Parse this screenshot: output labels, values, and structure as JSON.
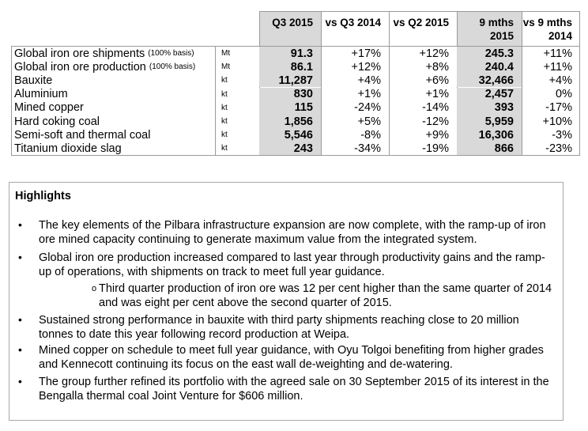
{
  "table": {
    "headers": {
      "q3_2015": "Q3 2015",
      "vs_q3_2014": "vs Q3 2014",
      "vs_q2_2015": "vs Q2 2015",
      "nine_mths_line1": "9 mths",
      "nine_mths_line2": "2015",
      "vs_nine_line1": "vs 9 mths",
      "vs_nine_line2": "2014"
    },
    "rows": [
      {
        "label": "Global iron ore shipments",
        "basis": "(100% basis)",
        "unit": "Mt",
        "q3": "91.3",
        "vs_q3": "+17%",
        "vs_q2": "+12%",
        "nine": "245.3",
        "vs_nine": "+11%"
      },
      {
        "label": "Global iron ore production",
        "basis": "(100% basis)",
        "unit": "Mt",
        "q3": "86.1",
        "vs_q3": "+12%",
        "vs_q2": "+8%",
        "nine": "240.4",
        "vs_nine": "+11%"
      },
      {
        "label": "Bauxite",
        "basis": "",
        "unit": "kt",
        "q3": "11,287",
        "vs_q3": "+4%",
        "vs_q2": "+6%",
        "nine": "32,466",
        "vs_nine": "+4%"
      },
      {
        "label": "Aluminium",
        "basis": "",
        "unit": "kt",
        "q3": "830",
        "vs_q3": "+1%",
        "vs_q2": "+1%",
        "nine": "2,457",
        "vs_nine": "0%"
      },
      {
        "label": "Mined copper",
        "basis": "",
        "unit": "kt",
        "q3": "115",
        "vs_q3": "-24%",
        "vs_q2": "-14%",
        "nine": "393",
        "vs_nine": "-17%"
      },
      {
        "label": "Hard coking coal",
        "basis": "",
        "unit": "kt",
        "q3": "1,856",
        "vs_q3": "+5%",
        "vs_q2": "-12%",
        "nine": "5,959",
        "vs_nine": "+10%"
      },
      {
        "label": "Semi-soft and thermal coal",
        "basis": "",
        "unit": "kt",
        "q3": "5,546",
        "vs_q3": "-8%",
        "vs_q2": "+9%",
        "nine": "16,306",
        "vs_nine": "-3%"
      },
      {
        "label": "Titanium dioxide slag",
        "basis": "",
        "unit": "kt",
        "q3": "243",
        "vs_q3": "-34%",
        "vs_q2": "-19%",
        "nine": "866",
        "vs_nine": "-23%"
      }
    ]
  },
  "highlights": {
    "title": "Highlights",
    "bullet_glyph": "•",
    "sub_glyph": "o",
    "items": [
      {
        "line1": "The key elements of the Pilbara infrastructure expansion are now complete, with the ramp-up of iron",
        "line2": "ore mined capacity continuing to generate maximum value from the integrated system."
      },
      {
        "line1": "Global iron ore production increased compared to last year through productivity gains and the ramp-",
        "line2": "up of operations, with shipments on track to meet full year guidance."
      },
      {
        "line1": "Third quarter production of iron ore was 12 per cent higher than the same quarter of 2014",
        "line2": "and was eight per cent above the second quarter of 2015."
      },
      {
        "line1": "Sustained strong performance in bauxite with third party shipments reaching close to 20 million",
        "line2": "tonnes to date this year following record production at Weipa."
      },
      {
        "line1": "Mined copper on schedule to meet full year guidance, with Oyu Tolgoi benefiting from higher grades",
        "line2": "and Kennecott continuing its focus on the east wall de-weighting and de-watering."
      },
      {
        "line1": "The group further refined its portfolio with the agreed sale on 30 September 2015 of its interest in the",
        "line2": "Bengalla thermal coal Joint Venture for $606 million."
      }
    ]
  }
}
